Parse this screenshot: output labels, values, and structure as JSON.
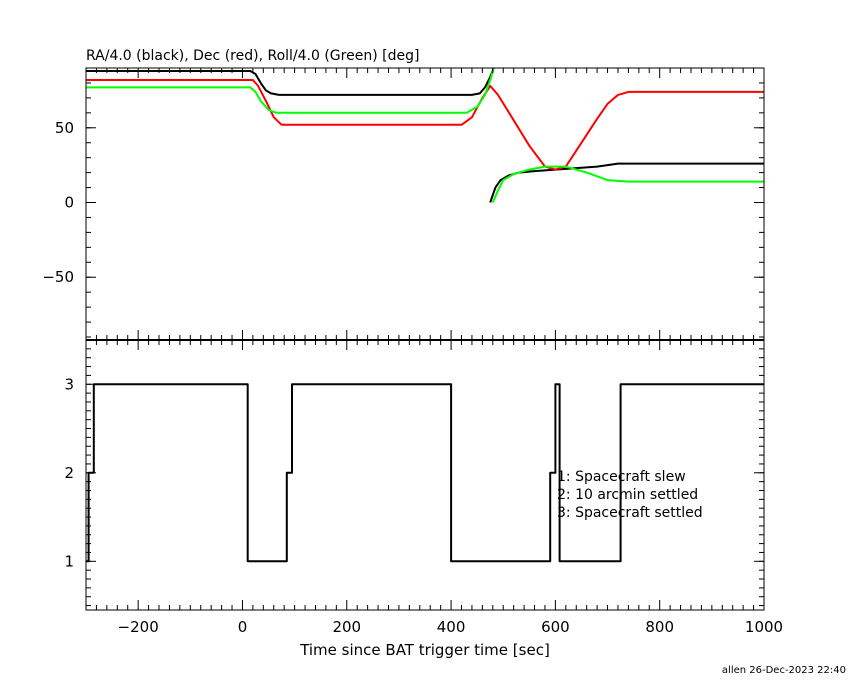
{
  "footer": "allen 26-Dec-2023 22:40",
  "chart_data": [
    {
      "type": "line",
      "title": "RA/4.0 (black), Dec (red), Roll/4.0 (Green) [deg]",
      "xlabel": "",
      "ylabel": "",
      "xlim": [
        -300,
        1000
      ],
      "ylim": [
        -92,
        90
      ],
      "yticks": [
        -50,
        0,
        50
      ],
      "ytick_labels": [
        "−50",
        "0",
        "50"
      ],
      "series": [
        {
          "color": "#000000",
          "segments": [
            [
              [
                -300,
                88
              ],
              [
                15,
                88
              ],
              [
                25,
                86
              ],
              [
                35,
                80
              ],
              [
                45,
                75
              ],
              [
                55,
                73
              ],
              [
                70,
                72
              ],
              [
                300,
                72
              ],
              [
                440,
                72
              ],
              [
                455,
                73
              ],
              [
                465,
                77
              ],
              [
                475,
                84
              ],
              [
                482,
                90
              ]
            ],
            [
              [
                475,
                0
              ],
              [
                480,
                5
              ],
              [
                485,
                10
              ],
              [
                495,
                15
              ],
              [
                510,
                18
              ],
              [
                530,
                20
              ],
              [
                560,
                21
              ],
              [
                600,
                22
              ],
              [
                640,
                23
              ],
              [
                680,
                24
              ],
              [
                720,
                26
              ],
              [
                1000,
                26
              ]
            ]
          ]
        },
        {
          "color": "#ff0000",
          "segments": [
            [
              [
                -300,
                82
              ],
              [
                20,
                82
              ],
              [
                30,
                78
              ],
              [
                45,
                68
              ],
              [
                60,
                57
              ],
              [
                75,
                52
              ],
              [
                85,
                52
              ],
              [
                420,
                52
              ],
              [
                440,
                57
              ],
              [
                460,
                70
              ],
              [
                475,
                78
              ],
              [
                490,
                72
              ],
              [
                520,
                55
              ],
              [
                550,
                38
              ],
              [
                580,
                24
              ],
              [
                600,
                22
              ],
              [
                620,
                24
              ],
              [
                650,
                40
              ],
              [
                680,
                56
              ],
              [
                700,
                66
              ],
              [
                720,
                72
              ],
              [
                740,
                74
              ],
              [
                1000,
                74
              ]
            ]
          ]
        },
        {
          "color": "#00ff00",
          "segments": [
            [
              [
                -300,
                77
              ],
              [
                15,
                77
              ],
              [
                25,
                74
              ],
              [
                35,
                68
              ],
              [
                50,
                62
              ],
              [
                65,
                60
              ],
              [
                430,
                60
              ],
              [
                450,
                64
              ],
              [
                465,
                72
              ],
              [
                475,
                82
              ],
              [
                482,
                90
              ]
            ],
            [
              [
                480,
                0
              ],
              [
                490,
                8
              ],
              [
                500,
                15
              ],
              [
                520,
                19
              ],
              [
                550,
                22
              ],
              [
                580,
                24
              ],
              [
                620,
                24
              ],
              [
                660,
                20
              ],
              [
                700,
                15
              ],
              [
                740,
                14
              ],
              [
                1000,
                14
              ]
            ]
          ]
        }
      ]
    },
    {
      "type": "line",
      "title": "",
      "xlabel": "Time since BAT trigger time [sec]",
      "ylabel": "",
      "xlim": [
        -300,
        1000
      ],
      "ylim": [
        0.45,
        3.5
      ],
      "xticks": [
        -200,
        0,
        200,
        400,
        600,
        800,
        1000
      ],
      "xtick_labels": [
        "−200",
        "0",
        "200",
        "400",
        "600",
        "800",
        "1000"
      ],
      "yticks": [
        1,
        2,
        3
      ],
      "ytick_labels": [
        "1",
        "2",
        "3"
      ],
      "annotations": [
        "1: Spacecraft slew",
        "2: 10 arcmin settled",
        "3: Spacecraft settled"
      ],
      "series": [
        {
          "color": "#000000",
          "points": [
            [
              -300,
              1
            ],
            [
              -295,
              1
            ],
            [
              -295,
              2
            ],
            [
              -285,
              2
            ],
            [
              -285,
              3
            ],
            [
              10,
              3
            ],
            [
              10,
              1
            ],
            [
              85,
              1
            ],
            [
              85,
              2
            ],
            [
              95,
              2
            ],
            [
              95,
              3
            ],
            [
              400,
              3
            ],
            [
              400,
              1
            ],
            [
              590,
              1
            ],
            [
              590,
              2
            ],
            [
              600,
              2
            ],
            [
              600,
              3
            ],
            [
              608,
              3
            ],
            [
              608,
              1
            ],
            [
              725,
              1
            ],
            [
              725,
              3
            ],
            [
              1000,
              3
            ]
          ]
        }
      ]
    }
  ]
}
